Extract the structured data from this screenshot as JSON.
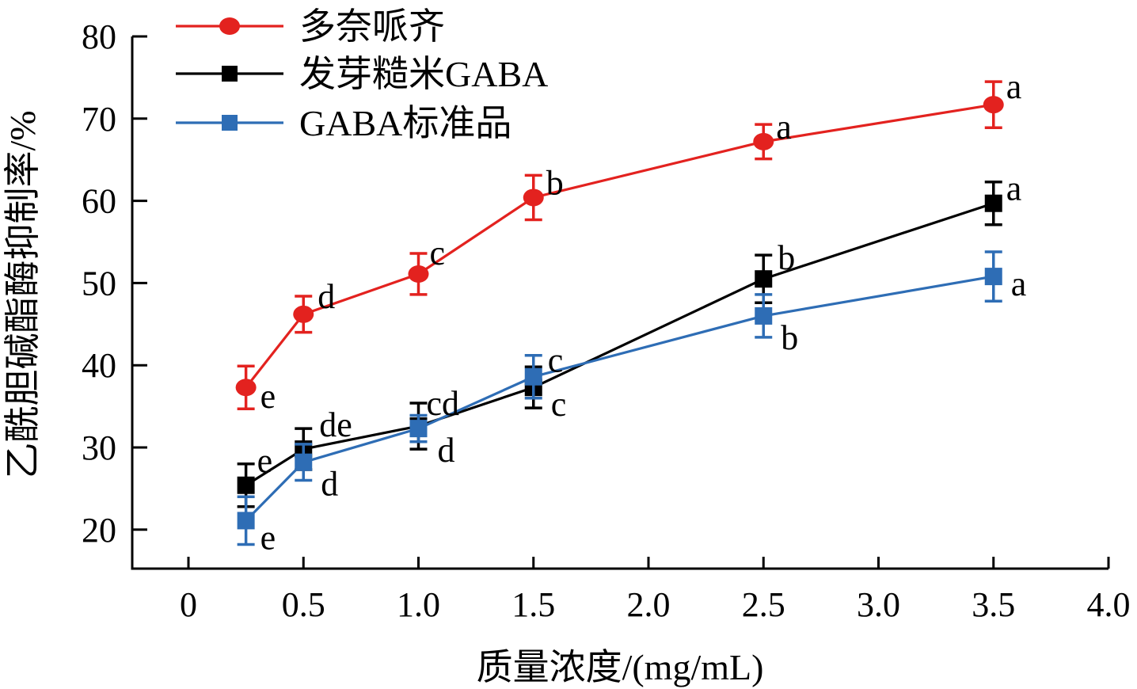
{
  "chart_data": {
    "type": "line",
    "title": "",
    "xlabel": "质量浓度/(mg/mL)",
    "ylabel": "乙酰胆碱酯酶抑制率/%",
    "xlim": [
      -0.25,
      4.0
    ],
    "ylim": [
      17,
      80
    ],
    "xticks": [
      0,
      0.5,
      1.0,
      1.5,
      2.0,
      2.5,
      3.0,
      3.5,
      4.0
    ],
    "xtick_labels": [
      "0",
      "0.5",
      "1.0",
      "1.5",
      "2.0",
      "2.5",
      "3.0",
      "3.5",
      "4.0"
    ],
    "yticks": [
      20,
      30,
      40,
      50,
      60,
      70,
      80
    ],
    "ytick_labels": [
      "20",
      "30",
      "40",
      "50",
      "60",
      "70",
      "80"
    ],
    "grid": false,
    "legend_position": "top-left",
    "x": [
      0.25,
      0.5,
      1.0,
      1.5,
      2.5,
      3.5
    ],
    "series": [
      {
        "name": "多奈哌齐",
        "color": "#e3221f",
        "marker": "circle",
        "values": [
          37.3,
          46.2,
          51.1,
          60.4,
          67.2,
          71.7
        ],
        "errors": [
          2.6,
          2.2,
          2.5,
          2.7,
          2.1,
          2.8
        ],
        "labels": [
          "e",
          "d",
          "c",
          "b",
          "a",
          "a"
        ]
      },
      {
        "name": "发芽糙米GABA",
        "color": "#000000",
        "marker": "square",
        "values": [
          25.4,
          29.8,
          32.6,
          37.3,
          50.5,
          59.7
        ],
        "errors": [
          2.6,
          2.5,
          2.8,
          2.5,
          2.9,
          2.6
        ],
        "labels": [
          "e",
          "de",
          "cd",
          "c",
          "b",
          "a"
        ]
      },
      {
        "name": "GABA标准品",
        "color": "#2e6db5",
        "marker": "square",
        "values": [
          21.1,
          28.2,
          32.3,
          38.6,
          46.0,
          50.8
        ],
        "errors": [
          2.9,
          2.2,
          1.6,
          2.6,
          2.6,
          3.0
        ],
        "labels": [
          "e",
          "d",
          "d",
          "c",
          "b",
          "a"
        ]
      }
    ]
  }
}
